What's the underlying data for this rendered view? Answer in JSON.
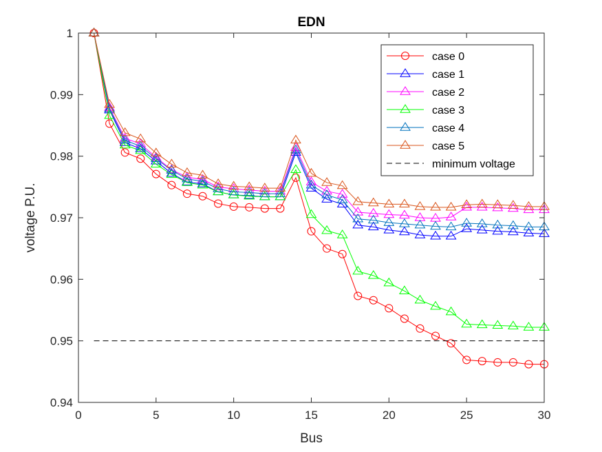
{
  "chart_data": {
    "type": "line",
    "title": "EDN",
    "xlabel": "Bus",
    "ylabel": "voltage P.U.",
    "xlim": [
      0,
      30
    ],
    "ylim": [
      0.94,
      1.0
    ],
    "xticks": [
      0,
      5,
      10,
      15,
      20,
      25,
      30
    ],
    "yticks": [
      0.94,
      0.95,
      0.96,
      0.97,
      0.98,
      0.99,
      1
    ],
    "ytick_labels": [
      "0.94",
      "0.95",
      "0.96",
      "0.97",
      "0.98",
      "0.99",
      "1"
    ],
    "grid": false,
    "legend_position": "top-right",
    "x": [
      1,
      2,
      3,
      4,
      5,
      6,
      7,
      8,
      9,
      10,
      11,
      12,
      13,
      14,
      15,
      16,
      17,
      18,
      19,
      20,
      21,
      22,
      23,
      24,
      25,
      26,
      27,
      28,
      29,
      30
    ],
    "series": [
      {
        "name": "case 0",
        "color": "#ff0000",
        "marker": "circle",
        "values": [
          1.0,
          0.9853,
          0.9806,
          0.9796,
          0.9771,
          0.9753,
          0.9739,
          0.9735,
          0.9723,
          0.9718,
          0.9717,
          0.9715,
          0.9715,
          0.9765,
          0.9678,
          0.965,
          0.9641,
          0.9573,
          0.9566,
          0.9553,
          0.9536,
          0.952,
          0.9508,
          0.9496,
          0.9469,
          0.9467,
          0.9465,
          0.9465,
          0.9462,
          0.9462
        ]
      },
      {
        "name": "case 1",
        "color": "#0000ff",
        "marker": "triangle",
        "values": [
          1.0,
          0.9875,
          0.9822,
          0.9812,
          0.9792,
          0.9772,
          0.9758,
          0.9755,
          0.9742,
          0.9737,
          0.9736,
          0.9734,
          0.9734,
          0.9806,
          0.9748,
          0.973,
          0.9722,
          0.9688,
          0.9685,
          0.968,
          0.9677,
          0.9672,
          0.967,
          0.967,
          0.9682,
          0.968,
          0.9678,
          0.9677,
          0.9675,
          0.9674
        ]
      },
      {
        "name": "case 2",
        "color": "#ff00ff",
        "marker": "triangle",
        "values": [
          1.0,
          0.9879,
          0.9829,
          0.982,
          0.9798,
          0.9778,
          0.9766,
          0.9762,
          0.975,
          0.9747,
          0.9745,
          0.9743,
          0.9743,
          0.9814,
          0.9758,
          0.9743,
          0.9738,
          0.9709,
          0.9707,
          0.9705,
          0.9704,
          0.97,
          0.9699,
          0.9701,
          0.9717,
          0.9717,
          0.9716,
          0.9715,
          0.9713,
          0.9713
        ]
      },
      {
        "name": "case 3",
        "color": "#00ff00",
        "marker": "triangle",
        "values": [
          1.0,
          0.9866,
          0.9818,
          0.9809,
          0.9787,
          0.977,
          0.9757,
          0.9753,
          0.9742,
          0.9737,
          0.9735,
          0.9734,
          0.9734,
          0.9778,
          0.9705,
          0.9679,
          0.9672,
          0.9613,
          0.9606,
          0.9594,
          0.9581,
          0.9566,
          0.9556,
          0.9547,
          0.9527,
          0.9526,
          0.9525,
          0.9524,
          0.9522,
          0.9522
        ]
      },
      {
        "name": "case 4",
        "color": "#0072bd",
        "marker": "triangle",
        "values": [
          1.0,
          0.9877,
          0.9826,
          0.9816,
          0.9796,
          0.9777,
          0.9763,
          0.9759,
          0.9747,
          0.9742,
          0.9741,
          0.9739,
          0.9739,
          0.981,
          0.9753,
          0.9737,
          0.9729,
          0.9698,
          0.9696,
          0.9692,
          0.969,
          0.9688,
          0.9686,
          0.9685,
          0.9691,
          0.969,
          0.9688,
          0.9687,
          0.9685,
          0.9685
        ]
      },
      {
        "name": "case 5",
        "color": "#d95319",
        "marker": "triangle",
        "values": [
          1.0,
          0.9884,
          0.9838,
          0.9828,
          0.9805,
          0.9787,
          0.9773,
          0.9769,
          0.9755,
          0.9751,
          0.975,
          0.9748,
          0.9748,
          0.9826,
          0.9772,
          0.9757,
          0.9752,
          0.9726,
          0.9724,
          0.9722,
          0.9722,
          0.9718,
          0.9717,
          0.9717,
          0.9721,
          0.9722,
          0.9721,
          0.972,
          0.9718,
          0.9718
        ]
      },
      {
        "name": "minimum voltage",
        "color": "#000000",
        "dashed": true,
        "values": [
          0.95,
          0.95,
          0.95,
          0.95,
          0.95,
          0.95,
          0.95,
          0.95,
          0.95,
          0.95,
          0.95,
          0.95,
          0.95,
          0.95,
          0.95,
          0.95,
          0.95,
          0.95,
          0.95,
          0.95,
          0.95,
          0.95,
          0.95,
          0.95,
          0.95,
          0.95,
          0.95,
          0.95,
          0.95,
          0.95
        ]
      }
    ]
  }
}
